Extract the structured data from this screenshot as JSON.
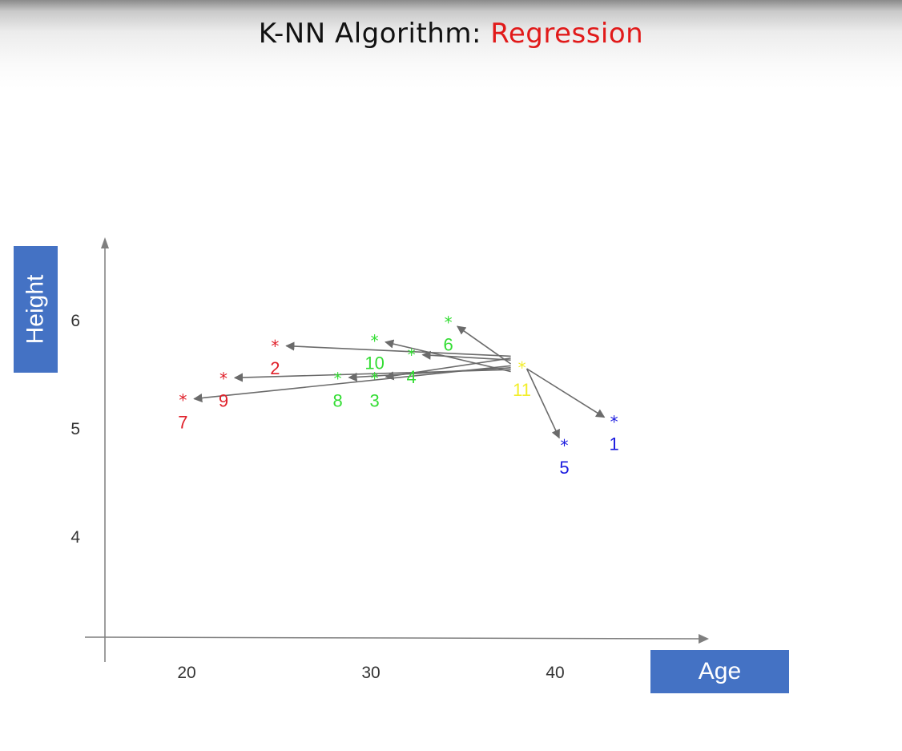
{
  "title": {
    "main": "K-NN Algorithm:",
    "accent": "Regression",
    "accent_color": "#e11a1a"
  },
  "chart_data": {
    "type": "scatter",
    "title": "K-NN Algorithm: Regression",
    "xlabel": "Age",
    "ylabel": "Height",
    "x_ticks": [
      20,
      30,
      40
    ],
    "y_ticks": [
      4,
      5,
      6
    ],
    "xlim": [
      16,
      47
    ],
    "ylim": [
      3.0,
      6.8
    ],
    "grid": false,
    "colors": {
      "red": "#e0202a",
      "green": "#33dd33",
      "blue": "#1a1adf",
      "yellow": "#f2ee2a",
      "arrow": "#6b6b6b",
      "axis": "#7f7f7f",
      "label_box": "#4472c4"
    },
    "points": [
      {
        "label": "1",
        "x": 43.2,
        "y": 5.1,
        "color": "blue"
      },
      {
        "label": "2",
        "x": 24.8,
        "y": 5.8,
        "color": "red"
      },
      {
        "label": "3",
        "x": 30.2,
        "y": 5.5,
        "color": "green"
      },
      {
        "label": "4",
        "x": 32.2,
        "y": 5.72,
        "color": "green"
      },
      {
        "label": "5",
        "x": 40.5,
        "y": 4.88,
        "color": "blue"
      },
      {
        "label": "6",
        "x": 34.2,
        "y": 6.02,
        "color": "green"
      },
      {
        "label": "7",
        "x": 19.8,
        "y": 5.3,
        "color": "red"
      },
      {
        "label": "8",
        "x": 28.2,
        "y": 5.5,
        "color": "green"
      },
      {
        "label": "9",
        "x": 22.0,
        "y": 5.5,
        "color": "red"
      },
      {
        "label": "10",
        "x": 30.2,
        "y": 5.85,
        "color": "green"
      },
      {
        "label": "11",
        "x": 38.2,
        "y": 5.6,
        "color": "yellow"
      }
    ]
  }
}
